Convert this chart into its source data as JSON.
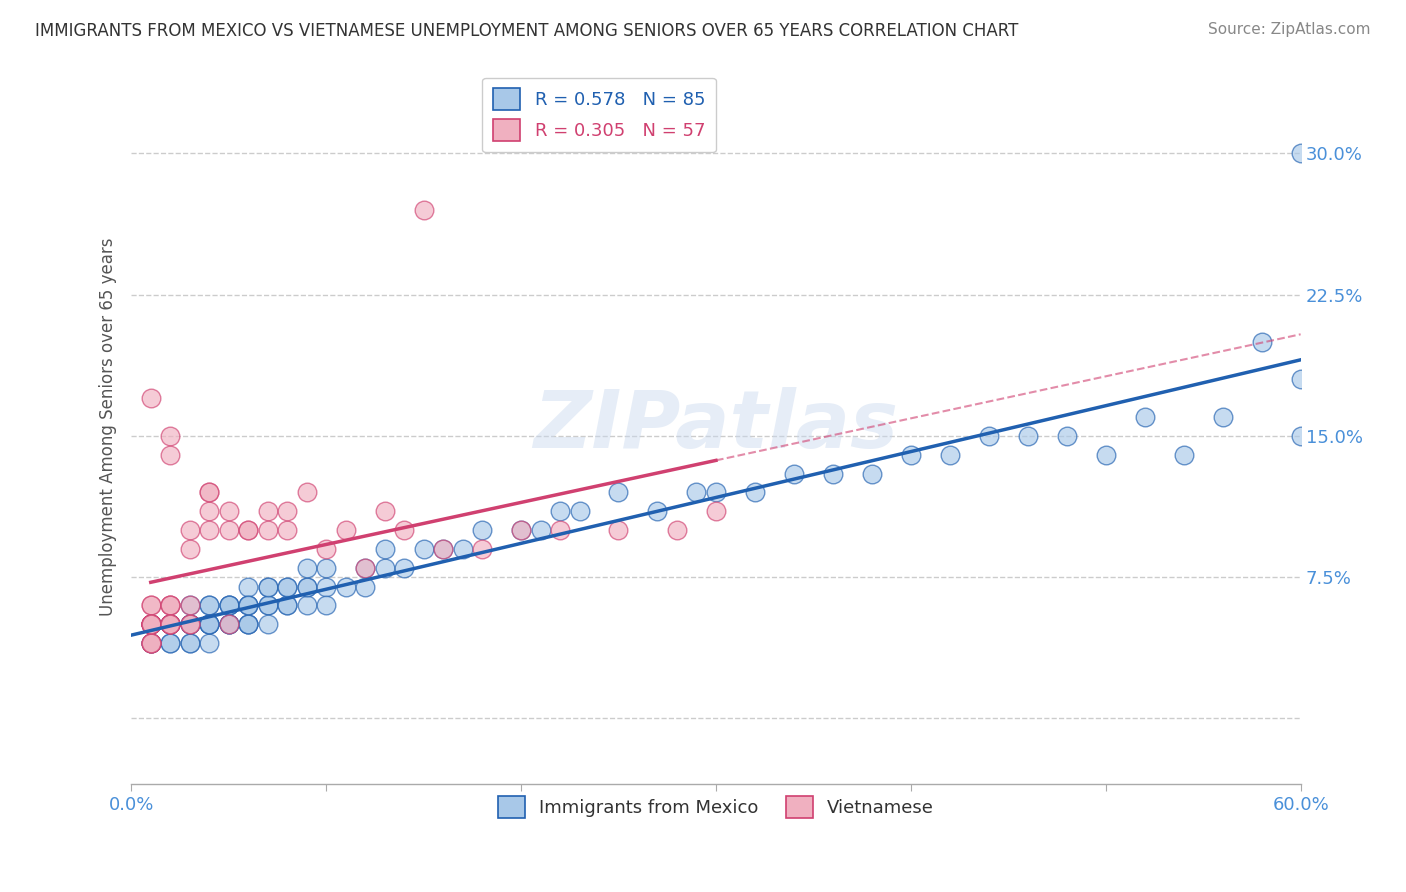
{
  "title": "IMMIGRANTS FROM MEXICO VS VIETNAMESE UNEMPLOYMENT AMONG SENIORS OVER 65 YEARS CORRELATION CHART",
  "source": "Source: ZipAtlas.com",
  "ylabel": "Unemployment Among Seniors over 65 years",
  "legend_blue_r": "R = 0.578",
  "legend_blue_n": "N = 85",
  "legend_pink_r": "R = 0.305",
  "legend_pink_n": "N = 57",
  "legend_label_blue": "Immigrants from Mexico",
  "legend_label_pink": "Vietnamese",
  "xlim": [
    0.0,
    0.6
  ],
  "ylim": [
    -0.035,
    0.345
  ],
  "yticks": [
    0.0,
    0.075,
    0.15,
    0.225,
    0.3
  ],
  "ytick_labels": [
    "",
    "7.5%",
    "15.0%",
    "22.5%",
    "30.0%"
  ],
  "xticks": [
    0.0,
    0.1,
    0.2,
    0.3,
    0.4,
    0.5,
    0.6
  ],
  "xtick_labels": [
    "0.0%",
    "",
    "",
    "",
    "",
    "",
    "60.0%"
  ],
  "color_blue": "#a8c8e8",
  "color_pink": "#f0b0c0",
  "color_blue_line": "#2060b0",
  "color_pink_line": "#d04070",
  "color_pink_dashed": "#d04070",
  "watermark": "ZIPatlas",
  "blue_x": [
    0.01,
    0.01,
    0.01,
    0.02,
    0.02,
    0.02,
    0.02,
    0.02,
    0.03,
    0.03,
    0.03,
    0.03,
    0.03,
    0.03,
    0.04,
    0.04,
    0.04,
    0.04,
    0.04,
    0.04,
    0.04,
    0.05,
    0.05,
    0.05,
    0.05,
    0.05,
    0.05,
    0.06,
    0.06,
    0.06,
    0.06,
    0.06,
    0.06,
    0.06,
    0.07,
    0.07,
    0.07,
    0.07,
    0.07,
    0.08,
    0.08,
    0.08,
    0.08,
    0.09,
    0.09,
    0.09,
    0.09,
    0.1,
    0.1,
    0.1,
    0.11,
    0.12,
    0.12,
    0.13,
    0.13,
    0.14,
    0.15,
    0.16,
    0.17,
    0.18,
    0.2,
    0.21,
    0.22,
    0.23,
    0.25,
    0.27,
    0.29,
    0.3,
    0.32,
    0.34,
    0.36,
    0.38,
    0.4,
    0.42,
    0.44,
    0.46,
    0.48,
    0.5,
    0.52,
    0.54,
    0.56,
    0.58,
    0.6,
    0.6,
    0.6
  ],
  "blue_y": [
    0.04,
    0.05,
    0.04,
    0.04,
    0.05,
    0.05,
    0.04,
    0.05,
    0.04,
    0.05,
    0.04,
    0.05,
    0.06,
    0.05,
    0.05,
    0.06,
    0.05,
    0.04,
    0.05,
    0.06,
    0.05,
    0.05,
    0.06,
    0.05,
    0.06,
    0.05,
    0.06,
    0.05,
    0.06,
    0.05,
    0.06,
    0.07,
    0.05,
    0.06,
    0.06,
    0.07,
    0.06,
    0.05,
    0.07,
    0.06,
    0.07,
    0.06,
    0.07,
    0.07,
    0.06,
    0.07,
    0.08,
    0.07,
    0.06,
    0.08,
    0.07,
    0.08,
    0.07,
    0.08,
    0.09,
    0.08,
    0.09,
    0.09,
    0.09,
    0.1,
    0.1,
    0.1,
    0.11,
    0.11,
    0.12,
    0.11,
    0.12,
    0.12,
    0.12,
    0.13,
    0.13,
    0.13,
    0.14,
    0.14,
    0.15,
    0.15,
    0.15,
    0.14,
    0.16,
    0.14,
    0.16,
    0.2,
    0.15,
    0.3,
    0.18
  ],
  "pink_x": [
    0.01,
    0.01,
    0.01,
    0.01,
    0.01,
    0.01,
    0.01,
    0.01,
    0.01,
    0.01,
    0.01,
    0.01,
    0.01,
    0.01,
    0.01,
    0.02,
    0.02,
    0.02,
    0.02,
    0.02,
    0.02,
    0.02,
    0.02,
    0.02,
    0.02,
    0.03,
    0.03,
    0.03,
    0.03,
    0.03,
    0.04,
    0.04,
    0.04,
    0.04,
    0.05,
    0.05,
    0.05,
    0.06,
    0.06,
    0.07,
    0.07,
    0.08,
    0.08,
    0.09,
    0.1,
    0.11,
    0.12,
    0.13,
    0.14,
    0.15,
    0.16,
    0.18,
    0.2,
    0.22,
    0.25,
    0.28,
    0.3
  ],
  "pink_y": [
    0.04,
    0.05,
    0.05,
    0.05,
    0.04,
    0.05,
    0.17,
    0.05,
    0.06,
    0.04,
    0.05,
    0.06,
    0.04,
    0.05,
    0.05,
    0.05,
    0.15,
    0.06,
    0.14,
    0.05,
    0.06,
    0.05,
    0.06,
    0.05,
    0.05,
    0.05,
    0.1,
    0.09,
    0.05,
    0.06,
    0.11,
    0.12,
    0.1,
    0.12,
    0.1,
    0.11,
    0.05,
    0.1,
    0.1,
    0.11,
    0.1,
    0.1,
    0.11,
    0.12,
    0.09,
    0.1,
    0.08,
    0.11,
    0.1,
    0.27,
    0.09,
    0.09,
    0.1,
    0.1,
    0.1,
    0.1,
    0.11
  ],
  "background_color": "#ffffff",
  "grid_color": "#cccccc"
}
